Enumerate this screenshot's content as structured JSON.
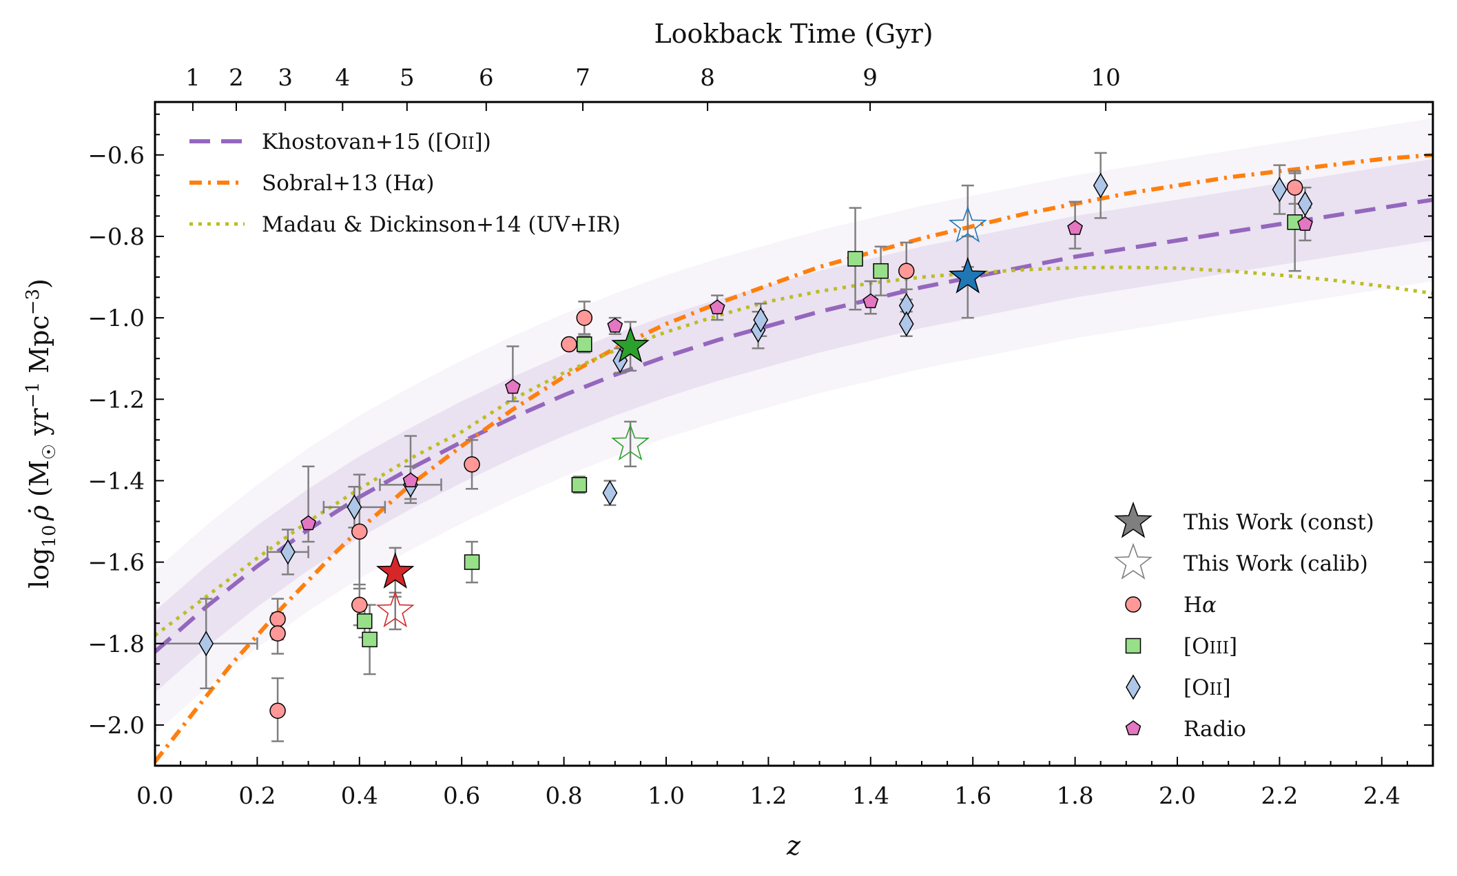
{
  "chart_data": {
    "type": "scatter",
    "title": "",
    "xlabel": "z",
    "ylabel": "log10 ρ̇ (M☉ yr−1 Mpc−3)",
    "top_xlabel": "Lookback Time (Gyr)",
    "xlim": [
      0.0,
      2.5
    ],
    "ylim": [
      -2.1,
      -0.47
    ],
    "x_ticks": [
      0.0,
      0.2,
      0.4,
      0.6,
      0.8,
      1.0,
      1.2,
      1.4,
      1.6,
      1.8,
      2.0,
      2.2,
      2.4
    ],
    "x_tick_labels": [
      "0.0",
      "0.2",
      "0.4",
      "0.6",
      "0.8",
      "1.0",
      "1.2",
      "1.4",
      "1.6",
      "1.8",
      "2.0",
      "2.2",
      "2.4"
    ],
    "y_ticks": [
      -2.0,
      -1.8,
      -1.6,
      -1.4,
      -1.2,
      -1.0,
      -0.8,
      -0.6
    ],
    "y_tick_labels": [
      "−2.0",
      "−1.8",
      "−1.6",
      "−1.4",
      "−1.2",
      "−1.0",
      "−0.8",
      "−0.6"
    ],
    "top_ticks": [
      {
        "label": "1",
        "z": 0.074
      },
      {
        "label": "2",
        "z": 0.159
      },
      {
        "label": "3",
        "z": 0.255
      },
      {
        "label": "4",
        "z": 0.367
      },
      {
        "label": "5",
        "z": 0.493
      },
      {
        "label": "6",
        "z": 0.648
      },
      {
        "label": "7",
        "z": 0.837
      },
      {
        "label": "8",
        "z": 1.081
      },
      {
        "label": "9",
        "z": 1.399
      },
      {
        "label": "10",
        "z": 1.86
      }
    ],
    "y_label_parts": {
      "log": "log",
      "sub10": "10",
      "rho": "ρ̇",
      "units_open": " (M",
      "sun": "☉",
      "yr": " yr",
      "exp1": "−1",
      "mpc": " Mpc",
      "exp3": "−3",
      "close": ")"
    },
    "colors": {
      "khostovan": "#9467bd",
      "sobral": "#ff7f0e",
      "madau": "#bcbd22",
      "band": "#9467bd",
      "halpha": "#ff9896",
      "oiii": "#98df8a",
      "oii": "#aec7e8",
      "radio": "#e377c2",
      "err": "#7f7f7f",
      "red": "#d62728",
      "green": "#2ca02c",
      "blue": "#1f77b4",
      "gray": "#7f7f7f"
    },
    "legend_left": [
      {
        "label": "Khostovan+15 ([O",
        "sc": "II",
        "tail": "])",
        "key": "khostovan"
      },
      {
        "label": "Sobral+13 (H",
        "greek": "α",
        "tail": ")",
        "key": "sobral"
      },
      {
        "label": "Madau & Dickinson+14 (UV+IR)",
        "key": "madau"
      }
    ],
    "legend_right": [
      {
        "label": "This Work (const)",
        "marker": "star-filled"
      },
      {
        "label": "This Work (calib)",
        "marker": "star-open"
      },
      {
        "label": "H",
        "greek": "α",
        "marker": "circle"
      },
      {
        "label": "[O",
        "sc": "III",
        "tail": "]",
        "marker": "square"
      },
      {
        "label": "[O",
        "sc": "II",
        "tail": "]",
        "marker": "diamond"
      },
      {
        "label": "Radio",
        "marker": "pentagon"
      }
    ],
    "series": [
      {
        "name": "Khostovan+15 ([OII])",
        "type": "line",
        "style": "dashed",
        "points": [
          [
            0,
            -1.82
          ],
          [
            0.1,
            -1.71
          ],
          [
            0.2,
            -1.61
          ],
          [
            0.3,
            -1.52
          ],
          [
            0.4,
            -1.44
          ],
          [
            0.5,
            -1.37
          ],
          [
            0.6,
            -1.305
          ],
          [
            0.7,
            -1.245
          ],
          [
            0.8,
            -1.19
          ],
          [
            0.9,
            -1.14
          ],
          [
            1.0,
            -1.095
          ],
          [
            1.1,
            -1.055
          ],
          [
            1.2,
            -1.02
          ],
          [
            1.3,
            -0.985
          ],
          [
            1.4,
            -0.955
          ],
          [
            1.5,
            -0.925
          ],
          [
            1.6,
            -0.9
          ],
          [
            1.7,
            -0.875
          ],
          [
            1.8,
            -0.85
          ],
          [
            1.9,
            -0.83
          ],
          [
            2.0,
            -0.81
          ],
          [
            2.1,
            -0.79
          ],
          [
            2.2,
            -0.77
          ],
          [
            2.3,
            -0.75
          ],
          [
            2.4,
            -0.73
          ],
          [
            2.5,
            -0.71
          ]
        ]
      },
      {
        "name": "Sobral+13 (Hα)",
        "type": "line",
        "style": "dashdot",
        "points": [
          [
            0,
            -2.09
          ],
          [
            0.05,
            -2.01
          ],
          [
            0.1,
            -1.93
          ],
          [
            0.15,
            -1.85
          ],
          [
            0.2,
            -1.78
          ],
          [
            0.25,
            -1.71
          ],
          [
            0.3,
            -1.645
          ],
          [
            0.35,
            -1.58
          ],
          [
            0.4,
            -1.52
          ],
          [
            0.45,
            -1.465
          ],
          [
            0.5,
            -1.41
          ],
          [
            0.6,
            -1.315
          ],
          [
            0.7,
            -1.225
          ],
          [
            0.8,
            -1.145
          ],
          [
            0.9,
            -1.075
          ],
          [
            1.0,
            -1.015
          ],
          [
            1.1,
            -0.965
          ],
          [
            1.2,
            -0.92
          ],
          [
            1.3,
            -0.875
          ],
          [
            1.4,
            -0.84
          ],
          [
            1.5,
            -0.805
          ],
          [
            1.6,
            -0.775
          ],
          [
            1.7,
            -0.745
          ],
          [
            1.8,
            -0.72
          ],
          [
            1.9,
            -0.695
          ],
          [
            2.0,
            -0.675
          ],
          [
            2.1,
            -0.655
          ],
          [
            2.2,
            -0.64
          ],
          [
            2.3,
            -0.625
          ],
          [
            2.4,
            -0.61
          ],
          [
            2.5,
            -0.6
          ]
        ]
      },
      {
        "name": "Madau & Dickinson+14 (UV+IR)",
        "type": "line",
        "style": "dotted",
        "points": [
          [
            0,
            -1.78
          ],
          [
            0.1,
            -1.685
          ],
          [
            0.2,
            -1.59
          ],
          [
            0.3,
            -1.5
          ],
          [
            0.4,
            -1.42
          ],
          [
            0.5,
            -1.345
          ],
          [
            0.6,
            -1.28
          ],
          [
            0.7,
            -1.2
          ],
          [
            0.8,
            -1.135
          ],
          [
            0.9,
            -1.08
          ],
          [
            1.0,
            -1.035
          ],
          [
            1.1,
            -0.995
          ],
          [
            1.2,
            -0.96
          ],
          [
            1.3,
            -0.935
          ],
          [
            1.4,
            -0.915
          ],
          [
            1.5,
            -0.9
          ],
          [
            1.6,
            -0.89
          ],
          [
            1.7,
            -0.882
          ],
          [
            1.8,
            -0.877
          ],
          [
            1.9,
            -0.876
          ],
          [
            2.0,
            -0.878
          ],
          [
            2.1,
            -0.885
          ],
          [
            2.2,
            -0.895
          ],
          [
            2.3,
            -0.907
          ],
          [
            2.4,
            -0.922
          ],
          [
            2.5,
            -0.94
          ]
        ]
      },
      {
        "name": "Halpha",
        "type": "scatter",
        "marker": "circle",
        "points": [
          {
            "x": 0.24,
            "y": -1.74,
            "yerr": [
              0.05,
              0.05
            ]
          },
          {
            "x": 0.24,
            "y": -1.775,
            "yerr": [
              0.05,
              0.05
            ]
          },
          {
            "x": 0.24,
            "y": -1.965,
            "yerr": [
              0.075,
              0.08
            ]
          },
          {
            "x": 0.4,
            "y": -1.525,
            "yerr": [
              0.14,
              0.14
            ]
          },
          {
            "x": 0.4,
            "y": -1.705,
            "yerr": [
              0.05,
              0.05
            ]
          },
          {
            "x": 0.62,
            "y": -1.36,
            "yerr": [
              0.06,
              0.06
            ]
          },
          {
            "x": 0.81,
            "y": -1.065,
            "yerr": [
              0,
              0
            ]
          },
          {
            "x": 0.84,
            "y": -1.0,
            "yerr": [
              0.04,
              0.04
            ]
          },
          {
            "x": 1.47,
            "y": -0.885,
            "yerr": [
              0.07,
              0.07
            ]
          },
          {
            "x": 2.23,
            "y": -0.68,
            "yerr": [
              0.04,
              0.04
            ]
          }
        ]
      },
      {
        "name": "[OIII]",
        "type": "scatter",
        "marker": "square",
        "points": [
          {
            "x": 0.41,
            "y": -1.745,
            "yerr": [
              0.04,
              0.04
            ]
          },
          {
            "x": 0.42,
            "y": -1.79,
            "yerr": [
              0.085,
              0.085
            ]
          },
          {
            "x": 0.62,
            "y": -1.6,
            "yerr": [
              0.05,
              0.05
            ]
          },
          {
            "x": 0.83,
            "y": -1.41,
            "yerr": [
              0.02,
              0.02
            ]
          },
          {
            "x": 0.84,
            "y": -1.065,
            "yerr": [
              0.02,
              0.02
            ]
          },
          {
            "x": 1.37,
            "y": -0.855,
            "yerr": [
              0.125,
              0.125
            ]
          },
          {
            "x": 1.42,
            "y": -0.885,
            "yerr": [
              0.06,
              0.06
            ]
          },
          {
            "x": 2.23,
            "y": -0.765,
            "yerr": [
              0.12,
              0.12
            ]
          }
        ]
      },
      {
        "name": "[OII]",
        "type": "scatter",
        "marker": "diamond",
        "points": [
          {
            "x": 0.1,
            "y": -1.8,
            "yerr": [
              0.11,
              0.11
            ],
            "xerr": [
              0.1,
              0.1
            ]
          },
          {
            "x": 0.26,
            "y": -1.575,
            "yerr": [
              0.055,
              0.055
            ],
            "xerr": [
              0.04,
              0.04
            ]
          },
          {
            "x": 0.39,
            "y": -1.465,
            "yerr": [
              0.05,
              0.05
            ],
            "xerr": [
              0.06,
              0.06
            ]
          },
          {
            "x": 0.5,
            "y": -1.41,
            "yerr": [
              0.045,
              0.045
            ],
            "xerr": [
              0.06,
              0.06
            ]
          },
          {
            "x": 0.89,
            "y": -1.43,
            "yerr": [
              0.03,
              0.03
            ]
          },
          {
            "x": 0.91,
            "y": -1.105,
            "yerr": [
              0.03,
              0.03
            ]
          },
          {
            "x": 1.18,
            "y": -1.03,
            "yerr": [
              0.045,
              0.045
            ]
          },
          {
            "x": 1.185,
            "y": -1.005,
            "yerr": [
              0.04,
              0.04
            ]
          },
          {
            "x": 1.47,
            "y": -0.97,
            "yerr": [
              0.04,
              0.04
            ]
          },
          {
            "x": 1.47,
            "y": -1.015,
            "yerr": [
              0.03,
              0.03
            ]
          },
          {
            "x": 1.85,
            "y": -0.675,
            "yerr": [
              0.08,
              0.08
            ]
          },
          {
            "x": 2.2,
            "y": -0.685,
            "yerr": [
              0.06,
              0.06
            ]
          },
          {
            "x": 2.25,
            "y": -0.72,
            "yerr": [
              0.04,
              0.04
            ]
          }
        ]
      },
      {
        "name": "Radio",
        "type": "scatter",
        "marker": "pentagon",
        "points": [
          {
            "x": 0.3,
            "y": -1.505,
            "yerr": [
              0.045,
              0.14
            ]
          },
          {
            "x": 0.5,
            "y": -1.4,
            "yerr": [
              0.045,
              0.11
            ]
          },
          {
            "x": 0.7,
            "y": -1.17,
            "yerr": [
              0.035,
              0.1
            ]
          },
          {
            "x": 0.9,
            "y": -1.02,
            "yerr": [
              0.02,
              0.02
            ]
          },
          {
            "x": 1.1,
            "y": -0.975,
            "yerr": [
              0.03,
              0.03
            ]
          },
          {
            "x": 1.4,
            "y": -0.96,
            "yerr": [
              0.03,
              0.05
            ]
          },
          {
            "x": 1.8,
            "y": -0.78,
            "yerr": [
              0.05,
              0.065
            ]
          },
          {
            "x": 2.25,
            "y": -0.77,
            "yerr": [
              0.04,
              0.04
            ]
          }
        ]
      },
      {
        "name": "This Work (const)",
        "type": "scatter",
        "marker": "star-filled",
        "points": [
          {
            "x": 0.47,
            "y": -1.625,
            "yerr": [
              0.06,
              0.06
            ],
            "color": "red"
          },
          {
            "x": 0.93,
            "y": -1.07,
            "yerr": [
              0.06,
              0.06
            ],
            "color": "green"
          },
          {
            "x": 1.59,
            "y": -0.9,
            "yerr": [
              0.1,
              0.1
            ],
            "color": "blue"
          }
        ]
      },
      {
        "name": "This Work (calib)",
        "type": "scatter",
        "marker": "star-open",
        "points": [
          {
            "x": 0.47,
            "y": -1.72,
            "yerr": [
              0.045,
              0.045
            ],
            "color": "red"
          },
          {
            "x": 0.93,
            "y": -1.31,
            "yerr": [
              0.055,
              0.055
            ],
            "color": "green"
          },
          {
            "x": 1.59,
            "y": -0.775,
            "yerr": [
              0.1,
              0.1
            ],
            "color": "blue"
          }
        ]
      }
    ]
  }
}
